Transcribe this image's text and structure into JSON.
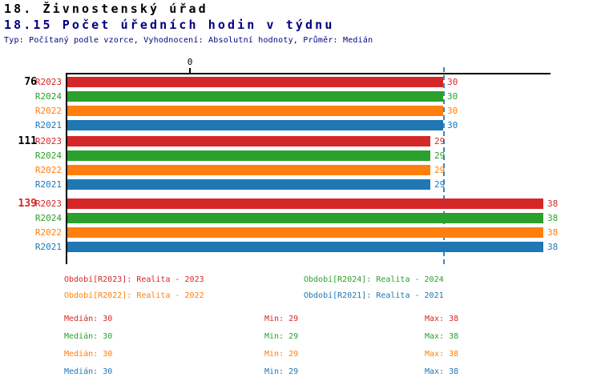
{
  "header": {
    "title": "18. Živnostenský úřad",
    "subtitle": "18.15 Počet úředních hodin v týdnu",
    "meta": "Typ: Počítaný podle vzorce, Vyhodnocení: Absolutní hodnoty, Průměr: Medián"
  },
  "colors": {
    "R2023": "#d62728",
    "R2024": "#2ca02c",
    "R2022": "#ff7f0e",
    "R2021": "#1f77b4",
    "median_line": "#3a87c8",
    "subtitle_navy": "#000080"
  },
  "chart_data": {
    "type": "bar",
    "orientation": "horizontal",
    "title": "18.15 Počet úředních hodin v týdnu",
    "axis": {
      "origin_label": "0",
      "min": 0,
      "max": 38.6,
      "grid": false
    },
    "median_line_value": 30,
    "series_order": [
      "R2023",
      "R2024",
      "R2022",
      "R2021"
    ],
    "groups": [
      {
        "label": "76",
        "label_color": "#000000",
        "bars": [
          {
            "series": "R2023",
            "value": 30,
            "color": "#d62728"
          },
          {
            "series": "R2024",
            "value": 30,
            "color": "#2ca02c"
          },
          {
            "series": "R2022",
            "value": 30,
            "color": "#ff7f0e"
          },
          {
            "series": "R2021",
            "value": 30,
            "color": "#1f77b4"
          }
        ]
      },
      {
        "label": "111",
        "label_color": "#000000",
        "bars": [
          {
            "series": "R2023",
            "value": 29,
            "color": "#d62728"
          },
          {
            "series": "R2024",
            "value": 29,
            "color": "#2ca02c"
          },
          {
            "series": "R2022",
            "value": 29,
            "color": "#ff7f0e"
          },
          {
            "series": "R2021",
            "value": 29,
            "color": "#1f77b4"
          }
        ]
      },
      {
        "label": "139",
        "label_color": "#d62728",
        "bars": [
          {
            "series": "R2023",
            "value": 38,
            "color": "#d62728"
          },
          {
            "series": "R2024",
            "value": 38,
            "color": "#2ca02c"
          },
          {
            "series": "R2022",
            "value": 38,
            "color": "#ff7f0e"
          },
          {
            "series": "R2021",
            "value": 38,
            "color": "#1f77b4"
          }
        ]
      }
    ]
  },
  "legend": [
    {
      "label": "Období[R2023]:",
      "text": "Realita - 2023",
      "color": "#d62728"
    },
    {
      "label": "Období[R2024]:",
      "text": "Realita - 2024",
      "color": "#2ca02c"
    },
    {
      "label": "Období[R2022]:",
      "text": "Realita - 2022",
      "color": "#ff7f0e"
    },
    {
      "label": "Období[R2021]:",
      "text": "Realita - 2021",
      "color": "#1f77b4"
    }
  ],
  "stats": [
    {
      "color": "#d62728",
      "median_label": "Medián:",
      "median": "30",
      "min_label": "Min:",
      "min": "29",
      "max_label": "Max:",
      "max": "38"
    },
    {
      "color": "#2ca02c",
      "median_label": "Medián:",
      "median": "30",
      "min_label": "Min:",
      "min": "29",
      "max_label": "Max:",
      "max": "38"
    },
    {
      "color": "#ff7f0e",
      "median_label": "Medián:",
      "median": "30",
      "min_label": "Min:",
      "min": "29",
      "max_label": "Max:",
      "max": "38"
    },
    {
      "color": "#1f77b4",
      "median_label": "Medián:",
      "median": "30",
      "min_label": "Min:",
      "min": "29",
      "max_label": "Max:",
      "max": "38"
    }
  ]
}
